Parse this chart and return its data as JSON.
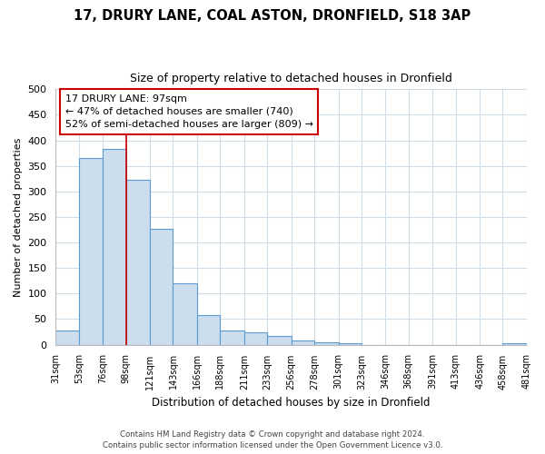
{
  "title": "17, DRURY LANE, COAL ASTON, DRONFIELD, S18 3AP",
  "subtitle": "Size of property relative to detached houses in Dronfield",
  "xlabel": "Distribution of detached houses by size in Dronfield",
  "ylabel": "Number of detached properties",
  "bar_color": "#ccdded",
  "bar_edge_color": "#5b9bd5",
  "background_color": "#ffffff",
  "grid_color": "#d0dce8",
  "annotation_box_edge_color": "#cc0000",
  "vline_color": "#cc0000",
  "vline_x": 98,
  "bin_edges": [
    31,
    53,
    76,
    98,
    121,
    143,
    166,
    188,
    211,
    233,
    256,
    278,
    301,
    323,
    346,
    368,
    391,
    413,
    436,
    458,
    481
  ],
  "bin_counts": [
    28,
    365,
    383,
    323,
    226,
    121,
    58,
    28,
    24,
    17,
    8,
    5,
    3,
    0,
    0,
    0,
    0,
    0,
    0,
    3
  ],
  "tick_labels": [
    "31sqm",
    "53sqm",
    "76sqm",
    "98sqm",
    "121sqm",
    "143sqm",
    "166sqm",
    "188sqm",
    "211sqm",
    "233sqm",
    "256sqm",
    "278sqm",
    "301sqm",
    "323sqm",
    "346sqm",
    "368sqm",
    "391sqm",
    "413sqm",
    "436sqm",
    "458sqm",
    "481sqm"
  ],
  "ylim": [
    0,
    500
  ],
  "yticks": [
    0,
    50,
    100,
    150,
    200,
    250,
    300,
    350,
    400,
    450,
    500
  ],
  "annotation_title": "17 DRURY LANE: 97sqm",
  "annotation_line1": "← 47% of detached houses are smaller (740)",
  "annotation_line2": "52% of semi-detached houses are larger (809) →",
  "footer_line1": "Contains HM Land Registry data © Crown copyright and database right 2024.",
  "footer_line2": "Contains public sector information licensed under the Open Government Licence v3.0."
}
